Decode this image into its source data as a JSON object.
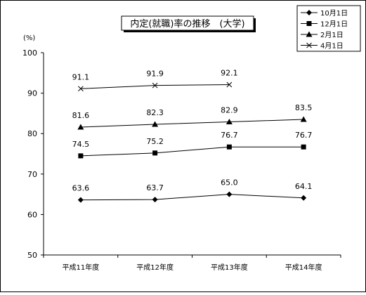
{
  "chart_data": {
    "type": "line",
    "title": "内定(就職)率の推移　(大学)",
    "ylabel": "(%)",
    "xlabel": "",
    "ylim": [
      50,
      100
    ],
    "yticks": [
      50,
      60,
      70,
      80,
      90,
      100
    ],
    "categories": [
      "平成11年度",
      "平成12年度",
      "平成13年度",
      "平成14年度"
    ],
    "legend_position": "top-right",
    "grid": false,
    "series": [
      {
        "name": "10月1日",
        "marker": "diamond",
        "values": [
          63.6,
          63.7,
          65.0,
          64.1
        ],
        "labels": [
          "63.6",
          "63.7",
          "65.0",
          "64.1"
        ]
      },
      {
        "name": "12月1日",
        "marker": "square",
        "values": [
          74.5,
          75.2,
          76.7,
          76.7
        ],
        "labels": [
          "74.5",
          "75.2",
          "76.7",
          "76.7"
        ]
      },
      {
        "name": "2月1日",
        "marker": "triangle",
        "values": [
          81.6,
          82.3,
          82.9,
          83.5
        ],
        "labels": [
          "81.6",
          "82.3",
          "82.9",
          "83.5"
        ]
      },
      {
        "name": "4月1日",
        "marker": "cross",
        "values": [
          91.1,
          91.9,
          92.1,
          null
        ],
        "labels": [
          "91.1",
          "91.9",
          "92.1",
          null
        ]
      }
    ]
  }
}
